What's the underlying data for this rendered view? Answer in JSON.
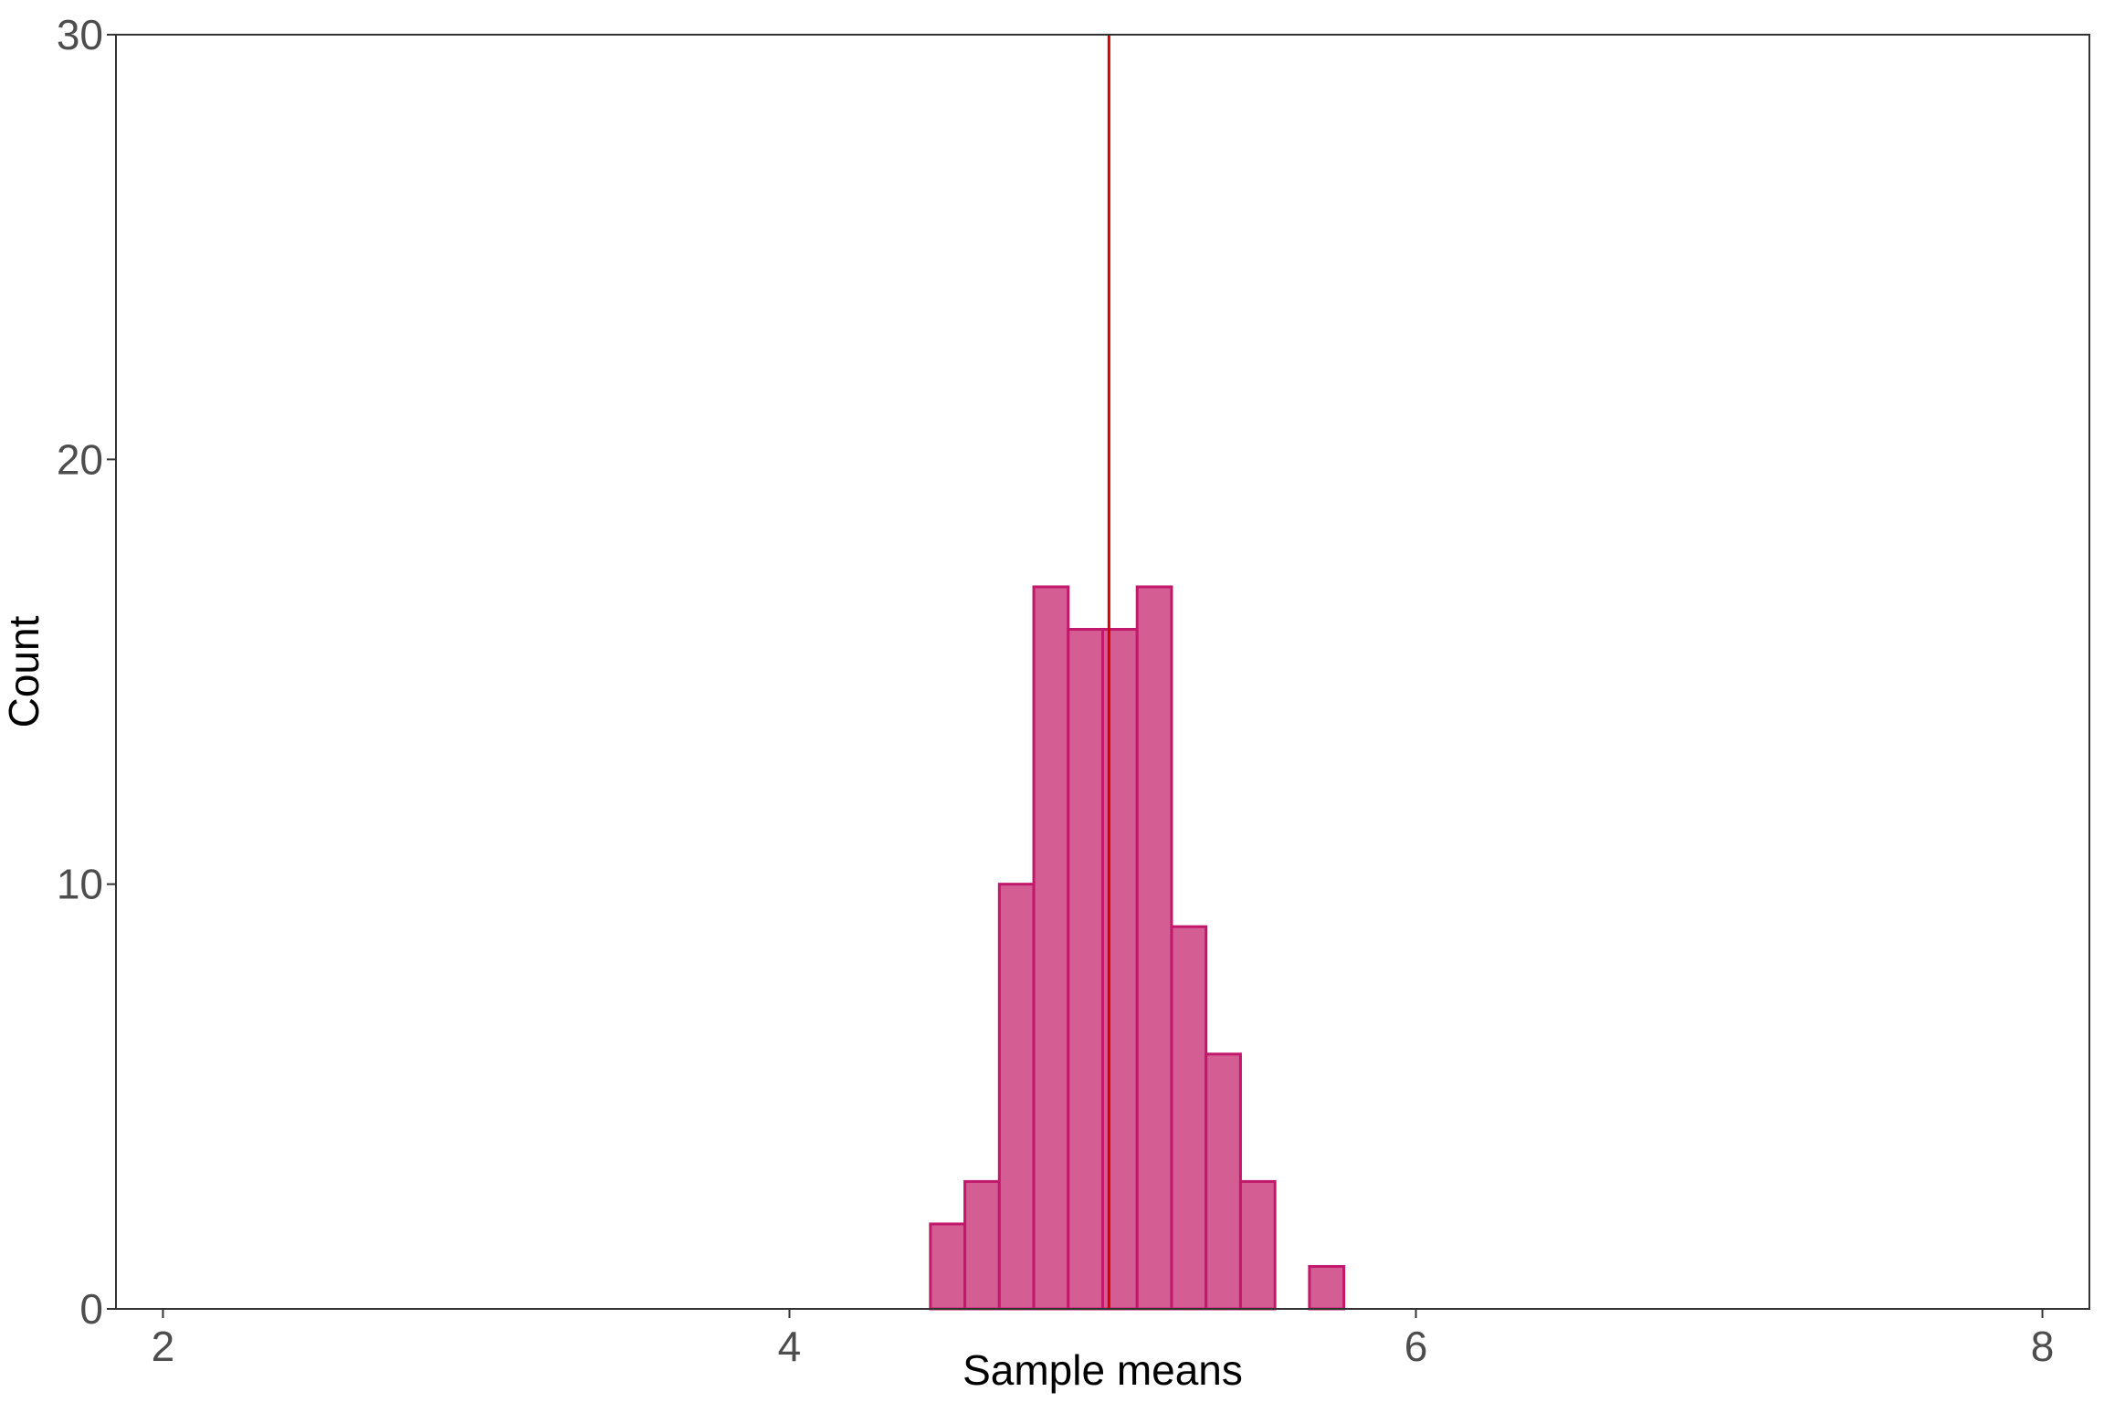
{
  "chart_data": {
    "type": "bar",
    "title": "",
    "xlabel": "Sample means",
    "ylabel": "Count",
    "xlim": [
      1.85,
      8.15
    ],
    "ylim": [
      0,
      30
    ],
    "x_ticks": [
      2,
      4,
      6,
      8
    ],
    "y_ticks": [
      0,
      10,
      20,
      30
    ],
    "grid": false,
    "bin_width": 0.11,
    "bins": [
      {
        "x_start": 4.45,
        "x_end": 4.56,
        "count": 2
      },
      {
        "x_start": 4.56,
        "x_end": 4.67,
        "count": 3
      },
      {
        "x_start": 4.67,
        "x_end": 4.78,
        "count": 10
      },
      {
        "x_start": 4.78,
        "x_end": 4.89,
        "count": 17
      },
      {
        "x_start": 4.89,
        "x_end": 5.0,
        "count": 16
      },
      {
        "x_start": 5.0,
        "x_end": 5.11,
        "count": 16
      },
      {
        "x_start": 5.11,
        "x_end": 5.22,
        "count": 17
      },
      {
        "x_start": 5.22,
        "x_end": 5.33,
        "count": 9
      },
      {
        "x_start": 5.33,
        "x_end": 5.44,
        "count": 6
      },
      {
        "x_start": 5.44,
        "x_end": 5.55,
        "count": 3
      },
      {
        "x_start": 5.55,
        "x_end": 5.66,
        "count": 0
      },
      {
        "x_start": 5.66,
        "x_end": 5.77,
        "count": 1
      }
    ],
    "reference_line": {
      "x": 5.02
    },
    "colors": {
      "bar_fill": "#d45d93",
      "bar_stroke": "#c2186b",
      "reference_line": "#d40000",
      "axis": "#333333"
    }
  }
}
